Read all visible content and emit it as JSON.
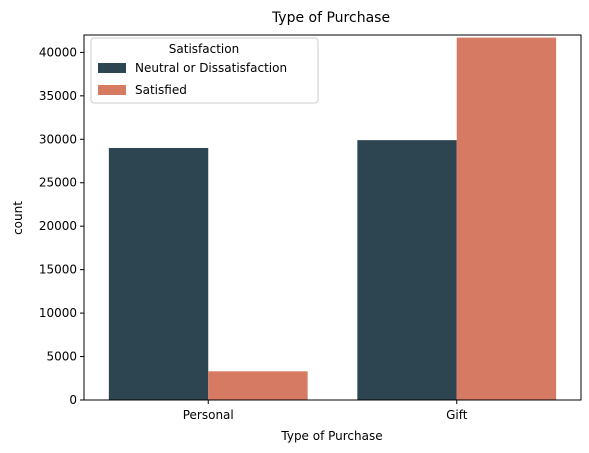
{
  "chart_data": {
    "type": "bar",
    "title": "Type of Purchase",
    "xlabel": "Type of Purchase",
    "ylabel": "count",
    "categories": [
      "Personal",
      "Gift"
    ],
    "series": [
      {
        "name": "Neutral or Dissatisfaction",
        "values": [
          29000,
          29900
        ],
        "color": "#2d4550"
      },
      {
        "name": "Satisfied",
        "values": [
          3300,
          41700
        ],
        "color": "#d67a63"
      }
    ],
    "ylim": [
      0,
      42000
    ],
    "yticks": [
      0,
      5000,
      10000,
      15000,
      20000,
      25000,
      30000,
      35000,
      40000
    ],
    "grid": false,
    "legend": {
      "title": "Satisfaction",
      "placement": "top-left"
    }
  }
}
